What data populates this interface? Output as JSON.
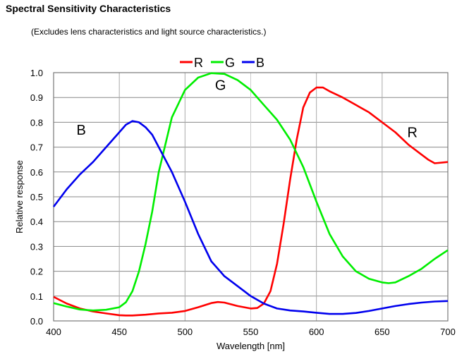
{
  "chart_data": {
    "type": "line",
    "title": "Spectral Sensitivity Characteristics",
    "subtitle": "(Excludes lens characteristics and light source characteristics.)",
    "xlabel": "Wavelength [nm]",
    "ylabel": "Relative response",
    "xlim": [
      400,
      700
    ],
    "ylim": [
      0,
      1.0
    ],
    "xticks": [
      "400",
      "450",
      "500",
      "550",
      "600",
      "650",
      "700"
    ],
    "yticks": [
      "0.0",
      "0.1",
      "0.2",
      "0.3",
      "0.4",
      "0.5",
      "0.6",
      "0.7",
      "0.8",
      "0.9",
      "1.0"
    ],
    "grid": true,
    "legend_position": "top-center",
    "series": [
      {
        "name": "R",
        "color": "#ff0000",
        "x": [
          400,
          410,
          420,
          430,
          440,
          450,
          455,
          460,
          470,
          480,
          490,
          500,
          510,
          520,
          525,
          530,
          540,
          550,
          555,
          560,
          565,
          570,
          575,
          580,
          585,
          590,
          595,
          600,
          605,
          610,
          620,
          630,
          640,
          650,
          660,
          670,
          680,
          685,
          690,
          700
        ],
        "y": [
          0.097,
          0.07,
          0.05,
          0.038,
          0.03,
          0.023,
          0.022,
          0.022,
          0.025,
          0.03,
          0.033,
          0.04,
          0.055,
          0.072,
          0.076,
          0.074,
          0.06,
          0.05,
          0.052,
          0.07,
          0.12,
          0.23,
          0.39,
          0.57,
          0.73,
          0.86,
          0.92,
          0.94,
          0.94,
          0.925,
          0.9,
          0.87,
          0.84,
          0.8,
          0.76,
          0.71,
          0.67,
          0.65,
          0.635,
          0.64
        ]
      },
      {
        "name": "G",
        "color": "#00ee00",
        "x": [
          400,
          410,
          420,
          430,
          440,
          450,
          455,
          460,
          465,
          470,
          475,
          480,
          490,
          500,
          510,
          520,
          530,
          540,
          550,
          560,
          570,
          580,
          590,
          600,
          610,
          620,
          630,
          640,
          650,
          655,
          660,
          670,
          680,
          690,
          700
        ],
        "y": [
          0.072,
          0.058,
          0.046,
          0.042,
          0.045,
          0.055,
          0.075,
          0.12,
          0.2,
          0.31,
          0.44,
          0.6,
          0.82,
          0.93,
          0.98,
          0.998,
          0.995,
          0.97,
          0.93,
          0.87,
          0.81,
          0.73,
          0.62,
          0.48,
          0.35,
          0.26,
          0.2,
          0.17,
          0.155,
          0.152,
          0.155,
          0.18,
          0.21,
          0.25,
          0.285
        ]
      },
      {
        "name": "B",
        "color": "#0000ee",
        "x": [
          400,
          410,
          420,
          430,
          440,
          450,
          455,
          460,
          465,
          470,
          475,
          480,
          490,
          500,
          510,
          520,
          530,
          540,
          550,
          560,
          570,
          580,
          590,
          600,
          610,
          620,
          630,
          640,
          650,
          660,
          670,
          680,
          690,
          700
        ],
        "y": [
          0.46,
          0.53,
          0.59,
          0.64,
          0.7,
          0.76,
          0.79,
          0.805,
          0.8,
          0.78,
          0.75,
          0.7,
          0.6,
          0.48,
          0.35,
          0.24,
          0.18,
          0.14,
          0.1,
          0.07,
          0.05,
          0.042,
          0.038,
          0.033,
          0.028,
          0.028,
          0.032,
          0.04,
          0.05,
          0.06,
          0.068,
          0.074,
          0.078,
          0.08
        ]
      }
    ],
    "annotations": [
      {
        "text": "B",
        "x": 421,
        "y": 0.75
      },
      {
        "text": "G",
        "x": 527,
        "y": 0.93
      },
      {
        "text": "R",
        "x": 673,
        "y": 0.74
      }
    ]
  }
}
